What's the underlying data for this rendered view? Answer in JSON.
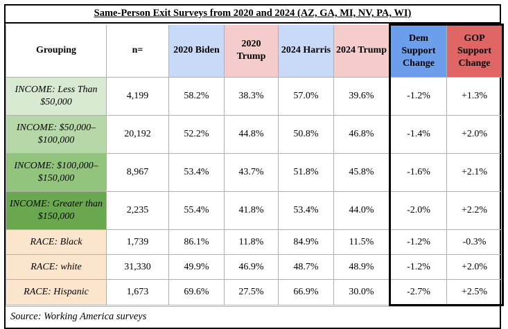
{
  "title": "Same-Person Exit Surveys from 2020 and 2024 (AZ, GA, MI, NV, PA, WI)",
  "source_note": "Source: Working America surveys",
  "colors": {
    "header_blue_light": "#c9daf8",
    "header_pink_light": "#f4cccc",
    "dem_blue": "#6d9eeb",
    "gop_red": "#e06666",
    "income_green_1": "#d9ead3",
    "income_green_2": "#b6d7a8",
    "income_green_3": "#93c47d",
    "income_green_4": "#6aa84f",
    "race_peach": "#fce5cd"
  },
  "table": {
    "columns": [
      {
        "id": "grouping",
        "label": "Grouping",
        "style": "plain"
      },
      {
        "id": "n",
        "label": "n=",
        "style": "plain"
      },
      {
        "id": "biden_2020",
        "label": "2020 Biden",
        "style": "blue"
      },
      {
        "id": "trump_2020",
        "label": "2020 Trump",
        "style": "pink"
      },
      {
        "id": "harris_2024",
        "label": "2024 Harris",
        "style": "blue"
      },
      {
        "id": "trump_2024",
        "label": "2024 Trump",
        "style": "pink"
      },
      {
        "id": "dem_change",
        "label": "Dem Support Change",
        "style": "dem"
      },
      {
        "id": "gop_change",
        "label": "GOP Support Change",
        "style": "gop"
      }
    ],
    "rows": [
      {
        "row_color": "#d9ead3",
        "size": "tall",
        "cells": {
          "grouping": "INCOME: Less Than $50,000",
          "n": "4,199",
          "biden_2020": "58.2%",
          "trump_2020": "38.3%",
          "harris_2024": "57.0%",
          "trump_2024": "39.6%",
          "dem_change": "-1.2%",
          "gop_change": "+1.3%"
        }
      },
      {
        "row_color": "#b6d7a8",
        "size": "tall",
        "cells": {
          "grouping": "INCOME: $50,000–$100,000",
          "n": "20,192",
          "biden_2020": "52.2%",
          "trump_2020": "44.8%",
          "harris_2024": "50.8%",
          "trump_2024": "46.8%",
          "dem_change": "-1.4%",
          "gop_change": "+2.0%"
        }
      },
      {
        "row_color": "#93c47d",
        "size": "tall",
        "cells": {
          "grouping": "INCOME: $100,000–$150,000",
          "n": "8,967",
          "biden_2020": "53.4%",
          "trump_2020": "43.7%",
          "harris_2024": "51.8%",
          "trump_2024": "45.8%",
          "dem_change": "-1.6%",
          "gop_change": "+2.1%"
        }
      },
      {
        "row_color": "#6aa84f",
        "size": "tall",
        "cells": {
          "grouping": "INCOME: Greater than $150,000",
          "n": "2,235",
          "biden_2020": "55.4%",
          "trump_2020": "41.8%",
          "harris_2024": "53.4%",
          "trump_2024": "44.0%",
          "dem_change": "-2.0%",
          "gop_change": "+2.2%"
        }
      },
      {
        "row_color": "#fce5cd",
        "size": "short",
        "cells": {
          "grouping": "RACE: Black",
          "n": "1,739",
          "biden_2020": "86.1%",
          "trump_2020": "11.8%",
          "harris_2024": "84.9%",
          "trump_2024": "11.5%",
          "dem_change": "-1.2%",
          "gop_change": "-0.3%"
        }
      },
      {
        "row_color": "#fce5cd",
        "size": "short",
        "cells": {
          "grouping": "RACE: white",
          "n": "31,330",
          "biden_2020": "49.9%",
          "trump_2020": "46.9%",
          "harris_2024": "48.7%",
          "trump_2024": "48.9%",
          "dem_change": "-1.2%",
          "gop_change": "+2.0%"
        }
      },
      {
        "row_color": "#fce5cd",
        "size": "short",
        "cells": {
          "grouping": "RACE: Hispanic",
          "n": "1,673",
          "biden_2020": "69.6%",
          "trump_2020": "27.5%",
          "harris_2024": "66.9%",
          "trump_2024": "30.0%",
          "dem_change": "-2.7%",
          "gop_change": "+2.5%"
        }
      }
    ]
  },
  "chart_data": {
    "type": "table",
    "title": "Same-Person Exit Surveys from 2020 and 2024 (AZ, GA, MI, NV, PA, WI)",
    "columns": [
      "Grouping",
      "n=",
      "2020 Biden",
      "2020 Trump",
      "2024 Harris",
      "2024 Trump",
      "Dem Support Change",
      "GOP Support Change"
    ],
    "rows": [
      [
        "INCOME: Less Than $50,000",
        "4,199",
        "58.2%",
        "38.3%",
        "57.0%",
        "39.6%",
        "-1.2%",
        "+1.3%"
      ],
      [
        "INCOME: $50,000–$100,000",
        "20,192",
        "52.2%",
        "44.8%",
        "50.8%",
        "46.8%",
        "-1.4%",
        "+2.0%"
      ],
      [
        "INCOME: $100,000–$150,000",
        "8,967",
        "53.4%",
        "43.7%",
        "51.8%",
        "45.8%",
        "-1.6%",
        "+2.1%"
      ],
      [
        "INCOME: Greater than $150,000",
        "2,235",
        "55.4%",
        "41.8%",
        "53.4%",
        "44.0%",
        "-2.0%",
        "+2.2%"
      ],
      [
        "RACE: Black",
        "1,739",
        "86.1%",
        "11.8%",
        "84.9%",
        "11.5%",
        "-1.2%",
        "-0.3%"
      ],
      [
        "RACE: white",
        "31,330",
        "49.9%",
        "46.9%",
        "48.7%",
        "48.9%",
        "-1.2%",
        "+2.0%"
      ],
      [
        "RACE: Hispanic",
        "1,673",
        "69.6%",
        "27.5%",
        "66.9%",
        "30.0%",
        "-2.7%",
        "+2.5%"
      ]
    ],
    "source": "Source: Working America surveys"
  }
}
